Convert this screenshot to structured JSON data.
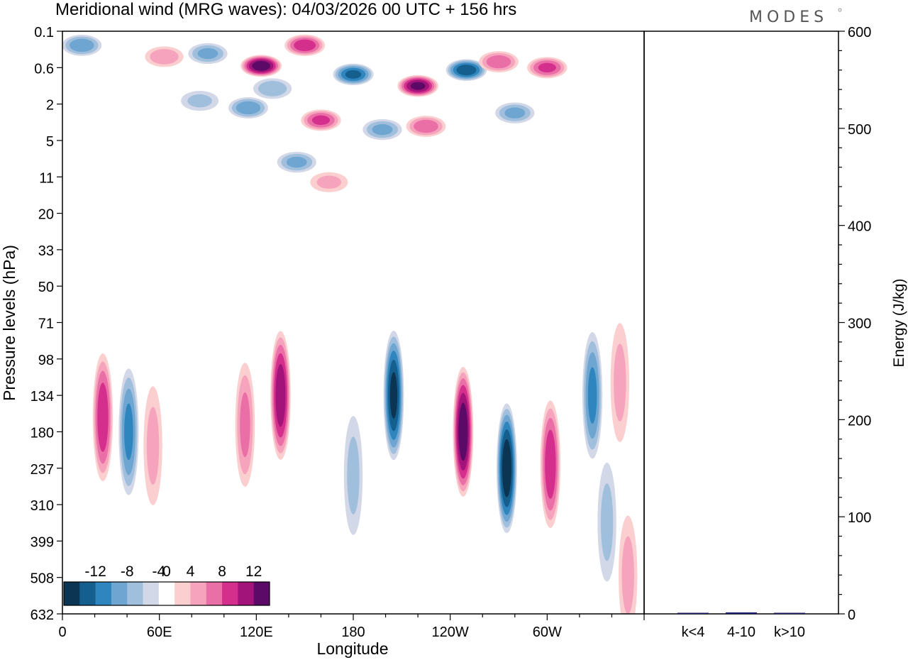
{
  "header": {
    "title": "Meridional wind (MRG waves):  04/03/2026  00 UTC  + 156 hrs",
    "brand": "MODES"
  },
  "colors": {
    "neg": [
      "#0b3552",
      "#155f8f",
      "#2f86bf",
      "#6fa6d1",
      "#9fbfdc",
      "#d3d8e8"
    ],
    "pos": [
      "#fbcfcf",
      "#f6a3bd",
      "#ea6fa6",
      "#d42f8c",
      "#a3147a",
      "#5b0a67"
    ],
    "bar": "#1a1a66"
  },
  "chart_data": [
    {
      "type": "heatmap",
      "title": "Meridional wind (MRG waves)",
      "xlabel": "Longitude",
      "ylabel": "Pressure levels (hPa)",
      "x_ticks": [
        "0",
        "60E",
        "120E",
        "180",
        "120W",
        "60W"
      ],
      "x_tick_values": [
        0,
        60,
        120,
        180,
        240,
        300
      ],
      "xlim": [
        0,
        360
      ],
      "y_ticks": [
        "0.1",
        "0.6",
        "2",
        "5",
        "11",
        "20",
        "33",
        "50",
        "71",
        "98",
        "134",
        "180",
        "237",
        "310",
        "399",
        "508",
        "632"
      ],
      "colorbar": {
        "labels": [
          "-12",
          "-8",
          "-4",
          "0",
          "4",
          "8",
          "12"
        ],
        "levels": [
          -14,
          -12,
          -10,
          -8,
          -6,
          -4,
          -2,
          2,
          4,
          6,
          8,
          10,
          12,
          14
        ]
      },
      "features": [
        {
          "lon": 12,
          "lev": 0.2,
          "value": -7
        },
        {
          "lon": 63,
          "lev": 0.35,
          "value": 5
        },
        {
          "lon": 90,
          "lev": 0.3,
          "value": -6
        },
        {
          "lon": 123,
          "lev": 0.55,
          "value": 13
        },
        {
          "lon": 150,
          "lev": 0.2,
          "value": 9
        },
        {
          "lon": 130,
          "lev": 1.2,
          "value": -5
        },
        {
          "lon": 180,
          "lev": 0.75,
          "value": -10
        },
        {
          "lon": 220,
          "lev": 1.1,
          "value": 12
        },
        {
          "lon": 250,
          "lev": 0.65,
          "value": -11
        },
        {
          "lon": 270,
          "lev": 0.45,
          "value": 7
        },
        {
          "lon": 300,
          "lev": 0.6,
          "value": 8
        },
        {
          "lon": 85,
          "lev": 1.8,
          "value": -4
        },
        {
          "lon": 115,
          "lev": 2.2,
          "value": -7
        },
        {
          "lon": 160,
          "lev": 3.0,
          "value": 8
        },
        {
          "lon": 198,
          "lev": 3.8,
          "value": -6
        },
        {
          "lon": 225,
          "lev": 3.5,
          "value": 7
        },
        {
          "lon": 280,
          "lev": 2.5,
          "value": -6
        },
        {
          "lon": 145,
          "lev": 8.0,
          "value": -6
        },
        {
          "lon": 165,
          "lev": 12.0,
          "value": 4
        },
        {
          "lon": 25,
          "lev": 160,
          "value": 9
        },
        {
          "lon": 41,
          "lev": 180,
          "value": -8
        },
        {
          "lon": 56,
          "lev": 200,
          "value": 4
        },
        {
          "lon": 135,
          "lev": 134,
          "value": 11
        },
        {
          "lon": 113,
          "lev": 170,
          "value": 6
        },
        {
          "lon": 180,
          "lev": 250,
          "value": -4
        },
        {
          "lon": 205,
          "lev": 134,
          "value": -12
        },
        {
          "lon": 248,
          "lev": 180,
          "value": 13
        },
        {
          "lon": 275,
          "lev": 237,
          "value": -13
        },
        {
          "lon": 302,
          "lev": 230,
          "value": 9
        },
        {
          "lon": 328,
          "lev": 134,
          "value": -8
        },
        {
          "lon": 345,
          "lev": 120,
          "value": 4
        },
        {
          "lon": 337,
          "lev": 350,
          "value": -4
        },
        {
          "lon": 350,
          "lev": 500,
          "value": 4
        }
      ]
    },
    {
      "type": "bar",
      "categories": [
        "k<4",
        "4-10",
        "k>10"
      ],
      "values": [
        0.4,
        1.5,
        0.3
      ],
      "ylabel": "Energy (J/kg)",
      "ylim": [
        0,
        600
      ],
      "y_ticks": [
        "0",
        "100",
        "200",
        "300",
        "400",
        "500",
        "600"
      ],
      "y_tick_values": [
        0,
        100,
        200,
        300,
        400,
        500,
        600
      ]
    }
  ]
}
